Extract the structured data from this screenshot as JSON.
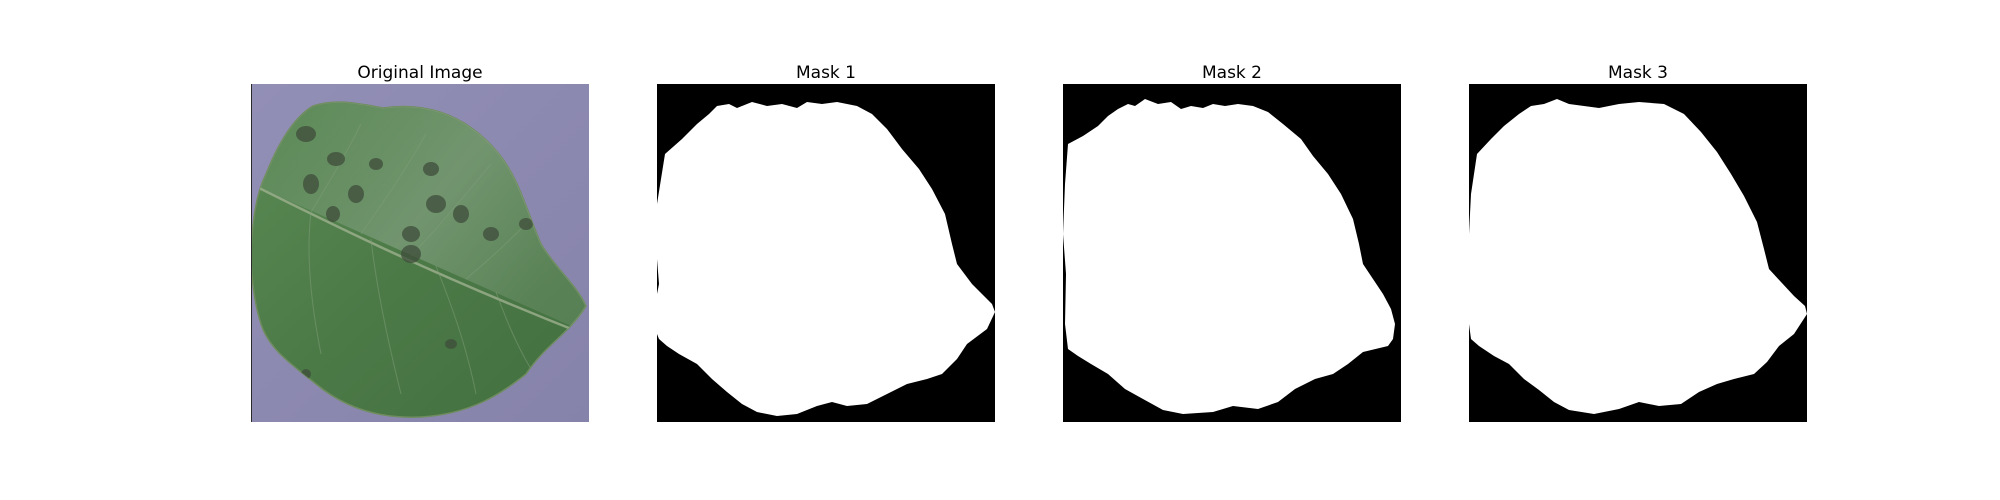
{
  "figure": {
    "panels": [
      {
        "title": "Original Image"
      },
      {
        "title": "Mask 1"
      },
      {
        "title": "Mask 2"
      },
      {
        "title": "Mask 3"
      }
    ]
  },
  "colors": {
    "background": "#8c89b0",
    "leaf": "#4f7d4a",
    "leaf_light": "#7a9c7d",
    "spot": "#3e4a3a",
    "mask_background": "#000000",
    "mask_foreground": "#ffffff"
  }
}
